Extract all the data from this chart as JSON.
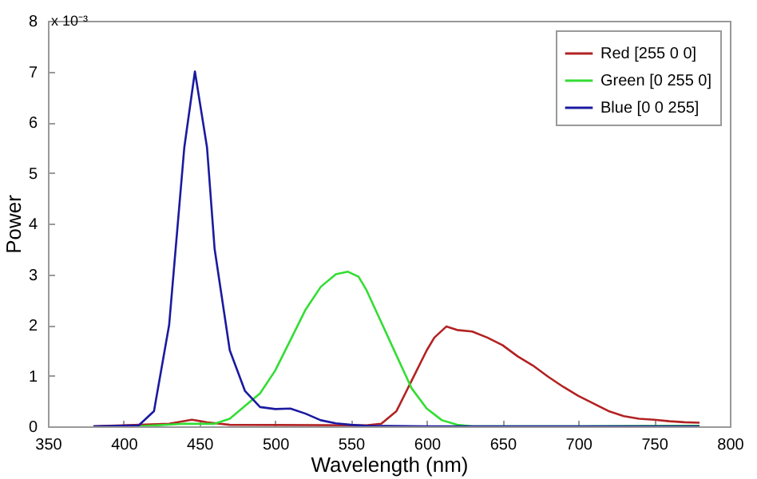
{
  "chart_data": {
    "type": "line",
    "xlabel": "Wavelength (nm)",
    "ylabel": "Power",
    "annotations": [
      "x 10⁻³"
    ],
    "xlim": [
      350,
      800
    ],
    "xticks": [
      350,
      400,
      450,
      500,
      550,
      600,
      650,
      700,
      750,
      800
    ],
    "ylim": [
      0,
      8
    ],
    "yticks": [
      0,
      1,
      2,
      3,
      4,
      5,
      6,
      7,
      8
    ],
    "grid": false,
    "legend": "top right",
    "series": [
      {
        "name": "Red [255 0 0]",
        "color": "#b22222",
        "x": [
          380,
          430,
          445,
          455,
          470,
          560,
          570,
          580,
          590,
          600,
          605,
          613,
          620,
          630,
          640,
          650,
          660,
          670,
          680,
          690,
          700,
          710,
          720,
          730,
          740,
          750,
          760,
          770,
          780
        ],
        "values": [
          0,
          0.05,
          0.13,
          0.08,
          0.03,
          0.02,
          0.05,
          0.3,
          0.9,
          1.5,
          1.75,
          1.97,
          1.9,
          1.87,
          1.75,
          1.6,
          1.38,
          1.2,
          0.98,
          0.78,
          0.6,
          0.45,
          0.3,
          0.2,
          0.15,
          0.13,
          0.1,
          0.08,
          0.07
        ]
      },
      {
        "name": "Green [0 255 0]",
        "color": "#33dd33",
        "x": [
          410,
          440,
          460,
          470,
          480,
          490,
          500,
          510,
          520,
          530,
          540,
          548,
          555,
          560,
          570,
          580,
          590,
          600,
          610,
          620,
          630,
          700,
          780
        ],
        "values": [
          0,
          0.05,
          0.05,
          0.15,
          0.4,
          0.65,
          1.1,
          1.7,
          2.3,
          2.75,
          3.0,
          3.05,
          2.95,
          2.7,
          2.05,
          1.4,
          0.75,
          0.35,
          0.12,
          0.03,
          0,
          0,
          0.01
        ]
      },
      {
        "name": "Blue [0 0 255]",
        "color": "#1a1aa0",
        "x": [
          380,
          410,
          420,
          430,
          440,
          447,
          455,
          460,
          470,
          480,
          490,
          500,
          510,
          520,
          530,
          540,
          550,
          560,
          600,
          780
        ],
        "values": [
          0,
          0.02,
          0.3,
          2.0,
          5.5,
          7.0,
          5.5,
          3.5,
          1.5,
          0.7,
          0.38,
          0.34,
          0.35,
          0.25,
          0.12,
          0.06,
          0.03,
          0.01,
          0,
          0
        ]
      }
    ]
  }
}
